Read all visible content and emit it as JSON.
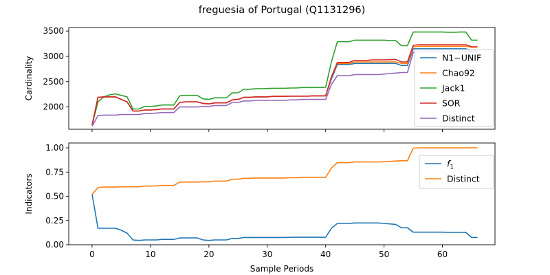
{
  "title": "freguesia of Portugal (Q1131296)",
  "chart_data": [
    {
      "type": "line",
      "ylabel": "Cardinality",
      "xlabel": "",
      "xlim": [
        -4,
        69
      ],
      "ylim": [
        1560,
        3570
      ],
      "yticks": [
        2000,
        2500,
        3000,
        3500
      ],
      "xticks": [
        0,
        10,
        20,
        30,
        40,
        50,
        60
      ],
      "show_x_tick_labels": false,
      "legend": "right",
      "series": [
        {
          "name": "N1−UNIF",
          "color": "#1f77b4",
          "x": [
            0,
            1,
            2,
            3,
            4,
            5,
            6,
            7,
            8,
            9,
            10,
            11,
            12,
            13,
            14,
            15,
            16,
            17,
            18,
            19,
            20,
            21,
            22,
            23,
            24,
            25,
            26,
            27,
            28,
            29,
            30,
            31,
            32,
            33,
            34,
            35,
            36,
            37,
            38,
            39,
            40,
            41,
            42,
            43,
            44,
            45,
            46,
            47,
            48,
            49,
            50,
            51,
            52,
            53,
            54,
            55,
            56,
            57,
            58,
            59,
            60,
            61,
            62,
            63,
            64,
            65,
            66
          ],
          "values": [
            1640,
            2190,
            2200,
            2200,
            2200,
            2150,
            2100,
            1920,
            1920,
            1940,
            1940,
            1950,
            1960,
            1960,
            1960,
            2090,
            2100,
            2100,
            2100,
            2070,
            2060,
            2080,
            2080,
            2080,
            2140,
            2150,
            2190,
            2190,
            2200,
            2200,
            2200,
            2210,
            2210,
            2210,
            2215,
            2215,
            2215,
            2215,
            2220,
            2220,
            2220,
            2560,
            2840,
            2840,
            2840,
            2860,
            2860,
            2860,
            2860,
            2860,
            2860,
            2860,
            2860,
            2820,
            2820,
            3150,
            3150,
            3150,
            3150,
            3150,
            3150,
            3150,
            3150,
            3150,
            3150,
            3100,
            3100
          ]
        },
        {
          "name": "Chao92",
          "color": "#ff7f0e",
          "x": [
            0,
            1,
            2,
            3,
            4,
            5,
            6,
            7,
            8,
            9,
            10,
            11,
            12,
            13,
            14,
            15,
            16,
            17,
            18,
            19,
            20,
            21,
            22,
            23,
            24,
            25,
            26,
            27,
            28,
            29,
            30,
            31,
            32,
            33,
            34,
            35,
            36,
            37,
            38,
            39,
            40,
            41,
            42,
            43,
            44,
            45,
            46,
            47,
            48,
            49,
            50,
            51,
            52,
            53,
            54,
            55,
            56,
            57,
            58,
            59,
            60,
            61,
            62,
            63,
            64,
            65,
            66
          ],
          "values": [
            1640,
            2190,
            2200,
            2200,
            2200,
            2150,
            2100,
            1920,
            1920,
            1940,
            1940,
            1950,
            1960,
            1960,
            1960,
            2090,
            2100,
            2100,
            2100,
            2070,
            2060,
            2080,
            2080,
            2080,
            2140,
            2150,
            2190,
            2190,
            2200,
            2200,
            2200,
            2210,
            2210,
            2210,
            2215,
            2215,
            2215,
            2215,
            2220,
            2220,
            2220,
            2600,
            2860,
            2860,
            2860,
            2890,
            2890,
            2890,
            2890,
            2890,
            2890,
            2890,
            2890,
            2860,
            2860,
            3190,
            3200,
            3200,
            3200,
            3200,
            3200,
            3200,
            3200,
            3200,
            3200,
            3180,
            3180
          ]
        },
        {
          "name": "Jack1",
          "color": "#2ca02c",
          "x": [
            0,
            1,
            2,
            3,
            4,
            5,
            6,
            7,
            8,
            9,
            10,
            11,
            12,
            13,
            14,
            15,
            16,
            17,
            18,
            19,
            20,
            21,
            22,
            23,
            24,
            25,
            26,
            27,
            28,
            29,
            30,
            31,
            32,
            33,
            34,
            35,
            36,
            37,
            38,
            39,
            40,
            41,
            42,
            43,
            44,
            45,
            46,
            47,
            48,
            49,
            50,
            51,
            52,
            53,
            54,
            55,
            56,
            57,
            58,
            59,
            60,
            61,
            62,
            63,
            64,
            65,
            66
          ],
          "values": [
            1640,
            2100,
            2200,
            2240,
            2260,
            2230,
            2200,
            1960,
            1960,
            2010,
            2010,
            2020,
            2040,
            2040,
            2040,
            2220,
            2230,
            2230,
            2230,
            2160,
            2150,
            2180,
            2180,
            2180,
            2280,
            2280,
            2350,
            2350,
            2360,
            2360,
            2365,
            2370,
            2370,
            2370,
            2375,
            2375,
            2385,
            2385,
            2385,
            2385,
            2390,
            2900,
            3290,
            3290,
            3290,
            3320,
            3320,
            3320,
            3320,
            3320,
            3320,
            3310,
            3310,
            3210,
            3210,
            3480,
            3480,
            3480,
            3480,
            3480,
            3480,
            3475,
            3475,
            3480,
            3480,
            3320,
            3320
          ]
        },
        {
          "name": "SOR",
          "color": "#d62728",
          "x": [
            0,
            1,
            2,
            3,
            4,
            5,
            6,
            7,
            8,
            9,
            10,
            11,
            12,
            13,
            14,
            15,
            16,
            17,
            18,
            19,
            20,
            21,
            22,
            23,
            24,
            25,
            26,
            27,
            28,
            29,
            30,
            31,
            32,
            33,
            34,
            35,
            36,
            37,
            38,
            39,
            40,
            41,
            42,
            43,
            44,
            45,
            46,
            47,
            48,
            49,
            50,
            51,
            52,
            53,
            54,
            55,
            56,
            57,
            58,
            59,
            60,
            61,
            62,
            63,
            64,
            65,
            66
          ],
          "values": [
            1640,
            2190,
            2200,
            2200,
            2200,
            2150,
            2100,
            1920,
            1920,
            1940,
            1940,
            1950,
            1960,
            1960,
            1960,
            2090,
            2100,
            2100,
            2100,
            2070,
            2060,
            2080,
            2080,
            2080,
            2140,
            2150,
            2190,
            2190,
            2200,
            2200,
            2200,
            2210,
            2210,
            2210,
            2215,
            2215,
            2215,
            2215,
            2220,
            2220,
            2220,
            2600,
            2880,
            2880,
            2880,
            2920,
            2920,
            2920,
            2930,
            2930,
            2930,
            2935,
            2940,
            2890,
            2890,
            3220,
            3230,
            3230,
            3230,
            3230,
            3230,
            3230,
            3230,
            3230,
            3230,
            3190,
            3190
          ]
        },
        {
          "name": "Distinct",
          "color": "#9467bd",
          "x": [
            0,
            1,
            2,
            3,
            4,
            5,
            6,
            7,
            8,
            9,
            10,
            11,
            12,
            13,
            14,
            15,
            16,
            17,
            18,
            19,
            20,
            21,
            22,
            23,
            24,
            25,
            26,
            27,
            28,
            29,
            30,
            31,
            32,
            33,
            34,
            35,
            36,
            37,
            38,
            39,
            40,
            41,
            42,
            43,
            44,
            45,
            46,
            47,
            48,
            49,
            50,
            51,
            52,
            53,
            54,
            55,
            56,
            57,
            58,
            59,
            60,
            61,
            62,
            63,
            64,
            65,
            66
          ],
          "values": [
            1620,
            1830,
            1840,
            1840,
            1840,
            1850,
            1850,
            1850,
            1850,
            1870,
            1870,
            1880,
            1890,
            1890,
            1890,
            2000,
            2000,
            2000,
            2000,
            2010,
            2010,
            2030,
            2030,
            2030,
            2090,
            2090,
            2120,
            2120,
            2130,
            2130,
            2130,
            2130,
            2130,
            2130,
            2140,
            2140,
            2150,
            2150,
            2150,
            2150,
            2150,
            2450,
            2620,
            2620,
            2620,
            2640,
            2640,
            2640,
            2640,
            2640,
            2650,
            2660,
            2670,
            2680,
            2680,
            3080,
            3090,
            3090,
            3090,
            3090,
            3090,
            3090,
            3090,
            3090,
            3090,
            3090,
            3090
          ]
        }
      ]
    },
    {
      "type": "line",
      "ylabel": "Indicators",
      "xlabel": "Sample Periods",
      "xlim": [
        -4,
        69
      ],
      "ylim": [
        0.0,
        1.05
      ],
      "yticks": [
        0.0,
        0.25,
        0.5,
        0.75,
        1.0
      ],
      "ytick_labels": [
        "0.00",
        "0.25",
        "0.50",
        "0.75",
        "1.00"
      ],
      "xticks": [
        0,
        10,
        20,
        30,
        40,
        50,
        60
      ],
      "legend": "top-right",
      "series": [
        {
          "name": "f1",
          "color": "#1f77b4",
          "x": [
            0,
            1,
            2,
            3,
            4,
            5,
            6,
            7,
            8,
            9,
            10,
            11,
            12,
            13,
            14,
            15,
            16,
            17,
            18,
            19,
            20,
            21,
            22,
            23,
            24,
            25,
            26,
            27,
            28,
            29,
            30,
            31,
            32,
            33,
            34,
            35,
            36,
            37,
            38,
            39,
            40,
            41,
            42,
            43,
            44,
            45,
            46,
            47,
            48,
            49,
            50,
            51,
            52,
            53,
            54,
            55,
            56,
            57,
            58,
            59,
            60,
            61,
            62,
            63,
            64,
            65,
            66
          ],
          "values": [
            0.52,
            0.17,
            0.17,
            0.17,
            0.17,
            0.15,
            0.12,
            0.05,
            0.045,
            0.05,
            0.05,
            0.05,
            0.055,
            0.055,
            0.055,
            0.07,
            0.07,
            0.07,
            0.07,
            0.05,
            0.045,
            0.05,
            0.05,
            0.05,
            0.065,
            0.065,
            0.075,
            0.075,
            0.075,
            0.075,
            0.075,
            0.075,
            0.075,
            0.075,
            0.077,
            0.077,
            0.077,
            0.077,
            0.077,
            0.077,
            0.077,
            0.17,
            0.22,
            0.22,
            0.22,
            0.225,
            0.225,
            0.225,
            0.225,
            0.225,
            0.22,
            0.215,
            0.21,
            0.175,
            0.175,
            0.13,
            0.13,
            0.13,
            0.13,
            0.13,
            0.13,
            0.128,
            0.128,
            0.128,
            0.128,
            0.075,
            0.075
          ]
        },
        {
          "name": "Distinct",
          "color": "#ff7f0e",
          "x": [
            0,
            1,
            2,
            3,
            4,
            5,
            6,
            7,
            8,
            9,
            10,
            11,
            12,
            13,
            14,
            15,
            16,
            17,
            18,
            19,
            20,
            21,
            22,
            23,
            24,
            25,
            26,
            27,
            28,
            29,
            30,
            31,
            32,
            33,
            34,
            35,
            36,
            37,
            38,
            39,
            40,
            41,
            42,
            43,
            44,
            45,
            46,
            47,
            48,
            49,
            50,
            51,
            52,
            53,
            54,
            55,
            56,
            57,
            58,
            59,
            60,
            61,
            62,
            63,
            64,
            65,
            66
          ],
          "values": [
            0.52,
            0.59,
            0.595,
            0.595,
            0.595,
            0.598,
            0.598,
            0.598,
            0.598,
            0.605,
            0.605,
            0.608,
            0.612,
            0.612,
            0.612,
            0.647,
            0.647,
            0.647,
            0.647,
            0.65,
            0.65,
            0.657,
            0.657,
            0.657,
            0.676,
            0.676,
            0.686,
            0.686,
            0.689,
            0.689,
            0.689,
            0.689,
            0.689,
            0.689,
            0.692,
            0.692,
            0.696,
            0.696,
            0.696,
            0.696,
            0.696,
            0.793,
            0.847,
            0.847,
            0.847,
            0.854,
            0.854,
            0.854,
            0.854,
            0.854,
            0.857,
            0.86,
            0.864,
            0.867,
            0.867,
            0.997,
            1.0,
            1.0,
            1.0,
            1.0,
            1.0,
            1.0,
            1.0,
            1.0,
            1.0,
            1.0,
            1.0
          ]
        }
      ]
    }
  ]
}
